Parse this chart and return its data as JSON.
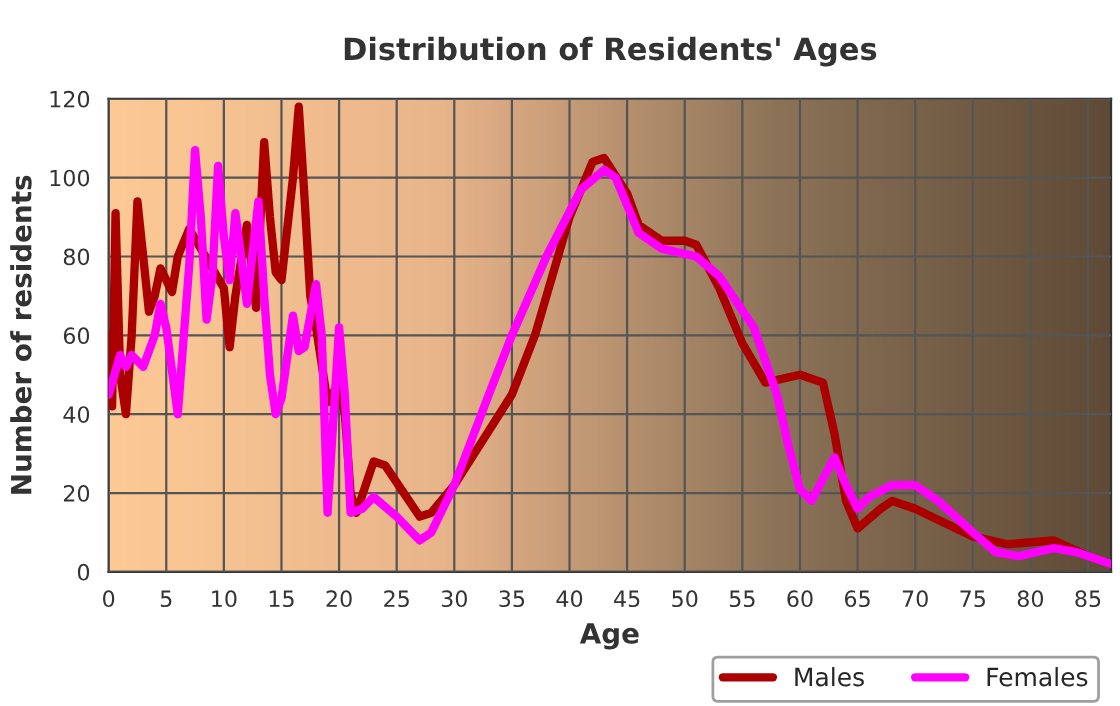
{
  "chart_data": {
    "type": "line",
    "title": "Distribution of Residents' Ages",
    "xlabel": "Age",
    "ylabel": "Number of residents",
    "xlim": [
      0,
      87
    ],
    "xticks": [
      0,
      5,
      10,
      15,
      20,
      25,
      30,
      35,
      40,
      45,
      50,
      55,
      60,
      65,
      70,
      75,
      80,
      85
    ],
    "ylim": [
      0,
      120
    ],
    "yticks": [
      0,
      20,
      40,
      60,
      80,
      100,
      120
    ],
    "grid": true,
    "legend": "bottom right",
    "line_style": "solid",
    "series": [
      {
        "name": "Males",
        "color": "#aa0000",
        "x": [
          0,
          0.3,
          0.6,
          1,
          1.5,
          2,
          2.5,
          3,
          3.5,
          4,
          4.5,
          5,
          5.5,
          6,
          7,
          8,
          9,
          10,
          10.5,
          11,
          12,
          12.8,
          13.5,
          14,
          14.5,
          15,
          16,
          16.5,
          17,
          17.5,
          18,
          19,
          20,
          20.5,
          21,
          21.5,
          23,
          24,
          27,
          28,
          30,
          35,
          37,
          40,
          42,
          43,
          45,
          46,
          48,
          50,
          51,
          53,
          55,
          57,
          60,
          62,
          63,
          64,
          65,
          67,
          68,
          70,
          75,
          78,
          82,
          85,
          87
        ],
        "values": [
          60,
          42,
          91,
          50,
          40,
          60,
          94,
          80,
          66,
          70,
          77,
          74,
          71,
          80,
          87,
          82,
          77,
          72,
          57,
          70,
          88,
          67,
          109,
          90,
          76,
          74,
          100,
          118,
          95,
          70,
          62,
          43,
          48,
          40,
          20,
          15,
          28,
          27,
          14,
          15,
          22,
          45,
          60,
          90,
          104,
          105,
          96,
          88,
          84,
          84,
          83,
          72,
          58,
          48,
          50,
          48,
          35,
          18,
          11,
          16,
          18,
          16,
          9,
          7,
          8,
          4,
          2
        ]
      },
      {
        "name": "Females",
        "color": "#ff00ff",
        "x": [
          0,
          1,
          1.5,
          2,
          3,
          4,
          4.5,
          5,
          6,
          7,
          7.5,
          8,
          8.5,
          9,
          9.5,
          10,
          10.5,
          11,
          11.5,
          12,
          13,
          13.5,
          14,
          14.5,
          15,
          16,
          16.5,
          17,
          18,
          18.5,
          19,
          20,
          20.5,
          21,
          22,
          23,
          25,
          27,
          28,
          30,
          33,
          35,
          38,
          41,
          43,
          44,
          46,
          48,
          51,
          53,
          56,
          58,
          59,
          60,
          61,
          63,
          64,
          65,
          66,
          68,
          70,
          72,
          75,
          77,
          79,
          82,
          84,
          87
        ],
        "values": [
          45,
          55,
          52,
          55,
          52,
          60,
          68,
          62,
          40,
          78,
          107,
          90,
          64,
          75,
          103,
          85,
          74,
          91,
          80,
          68,
          94,
          70,
          50,
          40,
          44,
          65,
          56,
          57,
          73,
          60,
          15,
          62,
          45,
          15,
          16,
          19,
          14,
          8,
          10,
          22,
          45,
          60,
          80,
          97,
          102,
          100,
          86,
          82,
          80,
          75,
          62,
          45,
          32,
          21,
          18,
          29,
          22,
          16,
          19,
          22,
          22,
          18,
          10,
          5,
          4,
          6,
          5,
          2
        ]
      }
    ]
  }
}
